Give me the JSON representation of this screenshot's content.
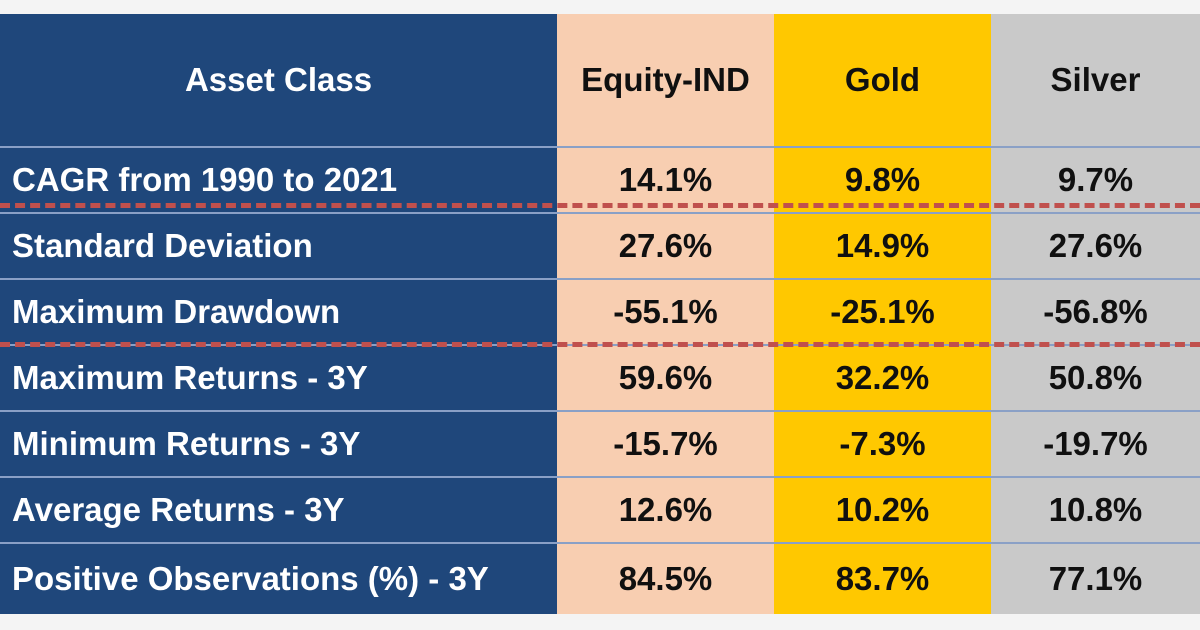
{
  "chart_data": {
    "type": "table",
    "columns": [
      "Asset Class",
      "Equity-IND",
      "Gold",
      "Silver"
    ],
    "rows": [
      {
        "label": "CAGR from 1990 to 2021",
        "values": [
          "14.1%",
          "9.8%",
          "9.7%"
        ]
      },
      {
        "label": "Standard Deviation",
        "values": [
          "27.6%",
          "14.9%",
          "27.6%"
        ]
      },
      {
        "label": "Maximum Drawdown",
        "values": [
          "-55.1%",
          "-25.1%",
          "-56.8%"
        ]
      },
      {
        "label": "Maximum Returns - 3Y",
        "values": [
          "59.6%",
          "32.2%",
          "50.8%"
        ]
      },
      {
        "label": "Minimum Returns - 3Y",
        "values": [
          "-15.7%",
          "-7.3%",
          "-19.7%"
        ]
      },
      {
        "label": "Average Returns - 3Y",
        "values": [
          "12.6%",
          "10.2%",
          "10.8%"
        ]
      },
      {
        "label": "Positive Observations (%) - 3Y",
        "values": [
          "84.5%",
          "83.7%",
          "77.1%"
        ]
      }
    ]
  },
  "colors": {
    "label_column": "#1f477b",
    "equity_column": "#f8ceb1",
    "gold_column": "#ffc800",
    "silver_column": "#c9c9c9",
    "separator_dash": "#c0504d"
  }
}
